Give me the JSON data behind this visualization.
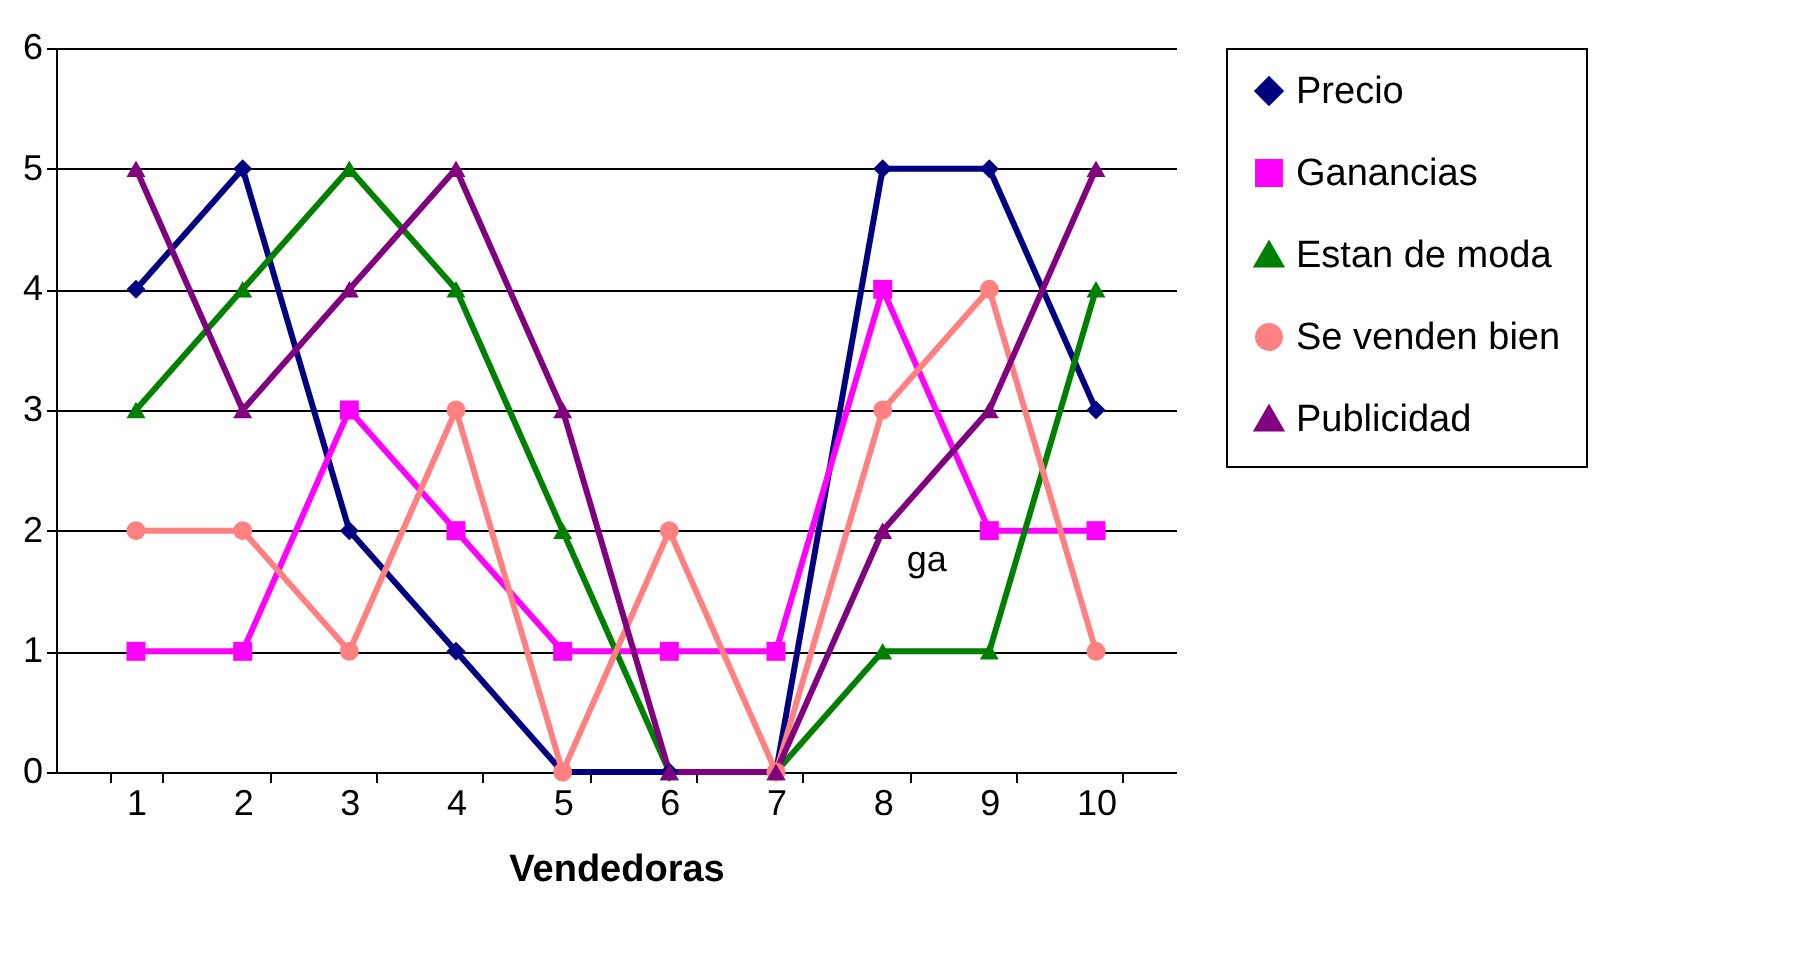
{
  "chart_data": {
    "type": "line",
    "xlabel": "Vendedoras",
    "categories": [
      "1",
      "2",
      "3",
      "4",
      "5",
      "6",
      "7",
      "8",
      "9",
      "10"
    ],
    "ylim": [
      0,
      6
    ],
    "yticks": [
      0,
      1,
      2,
      3,
      4,
      5,
      6
    ],
    "grid": "y",
    "legend": "right",
    "series": [
      {
        "name": "Precio",
        "color": "#000080",
        "marker": "diamond",
        "values": [
          4,
          5,
          2,
          1,
          0,
          0,
          0,
          5,
          5,
          3
        ]
      },
      {
        "name": "Ganancias",
        "color": "#ff00ff",
        "marker": "square",
        "values": [
          1,
          1,
          3,
          2,
          1,
          1,
          1,
          4,
          2,
          2
        ]
      },
      {
        "name": "Estan de moda",
        "color": "#008000",
        "marker": "triangle",
        "values": [
          3,
          4,
          5,
          4,
          2,
          0,
          0,
          1,
          1,
          4
        ]
      },
      {
        "name": "Se venden bien",
        "color": "#ff8080",
        "marker": "circle",
        "values": [
          2,
          2,
          1,
          3,
          0,
          2,
          0,
          3,
          4,
          1
        ]
      },
      {
        "name": "Publicidad",
        "color": "#800080",
        "marker": "triangle",
        "values": [
          5,
          3,
          4,
          5,
          3,
          0,
          0,
          2,
          3,
          5
        ]
      }
    ],
    "annotations": [
      {
        "text": "ga",
        "x": "8",
        "y": 2
      }
    ]
  }
}
